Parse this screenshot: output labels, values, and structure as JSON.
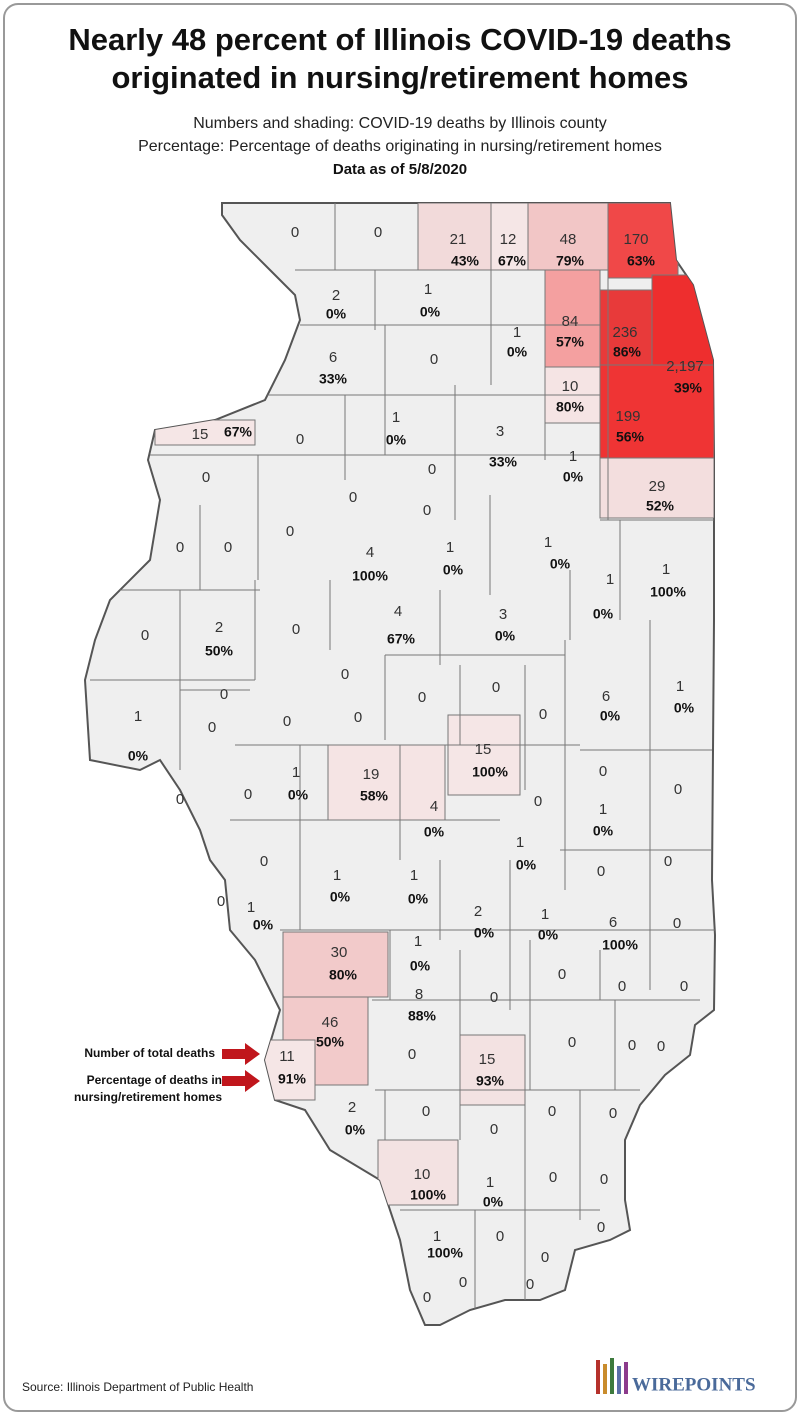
{
  "header": {
    "title_lines": [
      "Nearly 48 percent of Illinois COVID-19 deaths",
      "originated in nursing/retirement homes"
    ],
    "subtitle_lines": [
      "Numbers and shading: COVID-19 deaths by Illinois county",
      "Percentage: Percentage of deaths originating in nursing/retirement homes"
    ],
    "date": "Data as of 5/8/2020"
  },
  "map": {
    "base_fill": "#efefef",
    "border_color": "#555555",
    "counties": [
      {
        "deaths": "0"
      },
      {
        "deaths": "0"
      },
      {
        "deaths": "21",
        "pct": "43%",
        "fill": "#f2dada"
      },
      {
        "deaths": "12",
        "pct": "67%",
        "fill": "#f5e6e6"
      },
      {
        "deaths": "48",
        "pct": "79%",
        "fill": "#f2c6c6"
      },
      {
        "deaths": "170",
        "pct": "63%",
        "fill": "#f04848"
      },
      {
        "deaths": "2",
        "pct": "0%"
      },
      {
        "deaths": "1",
        "pct": "0%"
      },
      {
        "deaths": "1",
        "pct": "0%"
      },
      {
        "deaths": "84",
        "pct": "57%",
        "fill": "#f4a0a0"
      },
      {
        "deaths": "236",
        "pct": "86%",
        "fill": "#e83a3a"
      },
      {
        "deaths": "2,197",
        "pct": "39%",
        "fill": "#ee2e2e"
      },
      {
        "deaths": "6",
        "pct": "33%"
      },
      {
        "deaths": "0"
      },
      {
        "deaths": "10",
        "pct": "80%",
        "fill": "#f5e4e4"
      },
      {
        "deaths": "199",
        "pct": "56%",
        "fill": "#ef3434"
      },
      {
        "deaths": "15",
        "pct": "67%",
        "fill": "#f5e6e6"
      },
      {
        "deaths": "0"
      },
      {
        "deaths": "1",
        "pct": "0%"
      },
      {
        "deaths": "3",
        "pct": "33%"
      },
      {
        "deaths": "0"
      },
      {
        "deaths": "1",
        "pct": "0%"
      },
      {
        "deaths": "29",
        "pct": "52%",
        "fill": "#f3dede"
      },
      {
        "deaths": "0"
      },
      {
        "deaths": "0"
      },
      {
        "deaths": "0"
      },
      {
        "deaths": "0"
      },
      {
        "deaths": "0"
      },
      {
        "deaths": "0"
      },
      {
        "deaths": "4",
        "pct": "100%"
      },
      {
        "deaths": "1",
        "pct": "0%"
      },
      {
        "deaths": "1",
        "pct": "0%"
      },
      {
        "deaths": "1",
        "pct": "0%"
      },
      {
        "deaths": "1",
        "pct": "100%"
      },
      {
        "deaths": "0"
      },
      {
        "deaths": "2",
        "pct": "50%"
      },
      {
        "deaths": "0"
      },
      {
        "deaths": "4",
        "pct": "67%"
      },
      {
        "deaths": "3",
        "pct": "0%"
      },
      {
        "deaths": "0"
      },
      {
        "deaths": "0"
      },
      {
        "deaths": "0"
      },
      {
        "deaths": "0"
      },
      {
        "deaths": "6",
        "pct": "0%"
      },
      {
        "deaths": "1",
        "pct": "0%"
      },
      {
        "deaths": "1",
        "pct": "0%"
      },
      {
        "deaths": "0"
      },
      {
        "deaths": "0"
      },
      {
        "deaths": "0"
      },
      {
        "deaths": "0"
      },
      {
        "deaths": "15",
        "pct": "100%",
        "fill": "#f5e6e6"
      },
      {
        "deaths": "19",
        "pct": "58%",
        "fill": "#f5e4e4"
      },
      {
        "deaths": "1",
        "pct": "0%"
      },
      {
        "deaths": "0"
      },
      {
        "deaths": "0"
      },
      {
        "deaths": "0"
      },
      {
        "deaths": "0"
      },
      {
        "deaths": "4",
        "pct": "0%"
      },
      {
        "deaths": "0"
      },
      {
        "deaths": "1",
        "pct": "0%"
      },
      {
        "deaths": "1",
        "pct": "0%"
      },
      {
        "deaths": "0"
      },
      {
        "deaths": "1",
        "pct": "0%"
      },
      {
        "deaths": "1",
        "pct": "0%"
      },
      {
        "deaths": "0"
      },
      {
        "deaths": "0"
      },
      {
        "deaths": "0"
      },
      {
        "deaths": "1",
        "pct": "0%"
      },
      {
        "deaths": "2",
        "pct": "0%"
      },
      {
        "deaths": "1",
        "pct": "0%"
      },
      {
        "deaths": "6",
        "pct": "100%"
      },
      {
        "deaths": "0"
      },
      {
        "deaths": "30",
        "pct": "80%",
        "fill": "#f2caca"
      },
      {
        "deaths": "1",
        "pct": "0%"
      },
      {
        "deaths": "0"
      },
      {
        "deaths": "0"
      },
      {
        "deaths": "0"
      },
      {
        "deaths": "0"
      },
      {
        "deaths": "8",
        "pct": "88%"
      },
      {
        "deaths": "46",
        "pct": "50%",
        "fill": "#f2caca"
      },
      {
        "deaths": "0"
      },
      {
        "deaths": "0"
      },
      {
        "deaths": "0"
      },
      {
        "deaths": "0"
      },
      {
        "deaths": "11",
        "pct": "91%",
        "fill": "#f5e6e6"
      },
      {
        "deaths": "15",
        "pct": "93%",
        "fill": "#f3e2e2"
      },
      {
        "deaths": "2",
        "pct": "0%"
      },
      {
        "deaths": "0"
      },
      {
        "deaths": "0"
      },
      {
        "deaths": "0"
      },
      {
        "deaths": "0"
      },
      {
        "deaths": "10",
        "pct": "100%",
        "fill": "#f3e2e2"
      },
      {
        "deaths": "1",
        "pct": "0%"
      },
      {
        "deaths": "0"
      },
      {
        "deaths": "0"
      },
      {
        "deaths": "0"
      },
      {
        "deaths": "1",
        "pct": "100%"
      },
      {
        "deaths": "0"
      },
      {
        "deaths": "0"
      },
      {
        "deaths": "0"
      },
      {
        "deaths": "0"
      },
      {
        "deaths": "0"
      }
    ]
  },
  "legend": {
    "deaths_label": "Number of total deaths",
    "pct_label_lines": [
      "Percentage of deaths in",
      "nursing/retirement homes"
    ]
  },
  "footer": {
    "source": "Source: Illinois Department of Public Health",
    "logo": "WIREPOINTS"
  }
}
